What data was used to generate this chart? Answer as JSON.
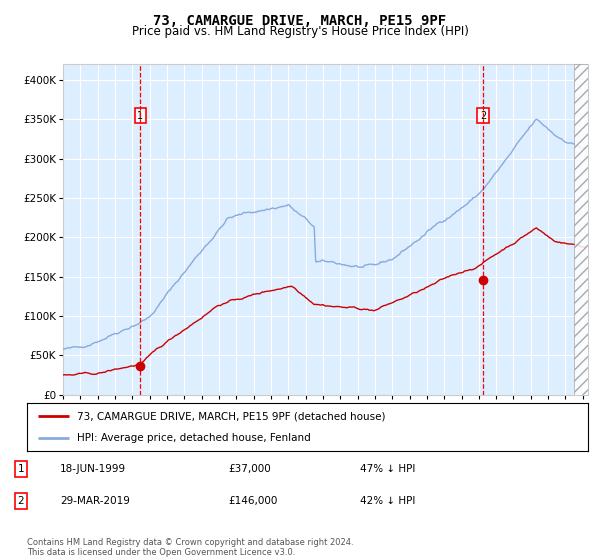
{
  "title": "73, CAMARGUE DRIVE, MARCH, PE15 9PF",
  "subtitle": "Price paid vs. HM Land Registry's House Price Index (HPI)",
  "title_fontsize": 10,
  "subtitle_fontsize": 8.5,
  "ylim": [
    0,
    420000
  ],
  "yticks": [
    0,
    50000,
    100000,
    150000,
    200000,
    250000,
    300000,
    350000,
    400000
  ],
  "ytick_labels": [
    "£0",
    "£50K",
    "£100K",
    "£150K",
    "£200K",
    "£250K",
    "£300K",
    "£350K",
    "£400K"
  ],
  "hpi_color": "#88aadd",
  "price_color": "#cc0000",
  "bg_color": "#ddeeff",
  "grid_color": "#ffffff",
  "annotation1_date": "18-JUN-1999",
  "annotation1_price": "£37,000",
  "annotation1_pct": "47% ↓ HPI",
  "annotation2_date": "29-MAR-2019",
  "annotation2_price": "£146,000",
  "annotation2_pct": "42% ↓ HPI",
  "legend_label1": "73, CAMARGUE DRIVE, MARCH, PE15 9PF (detached house)",
  "legend_label2": "HPI: Average price, detached house, Fenland",
  "footer": "Contains HM Land Registry data © Crown copyright and database right 2024.\nThis data is licensed under the Open Government Licence v3.0.",
  "marker1_x_year": 1999.46,
  "marker1_y": 37000,
  "marker2_x_year": 2019.24,
  "marker2_y": 146000,
  "vline1_x": 1999.46,
  "vline2_x": 2019.24,
  "hatch_start": 2024.5,
  "xlim_left": 1995.0,
  "xlim_right": 2025.3
}
